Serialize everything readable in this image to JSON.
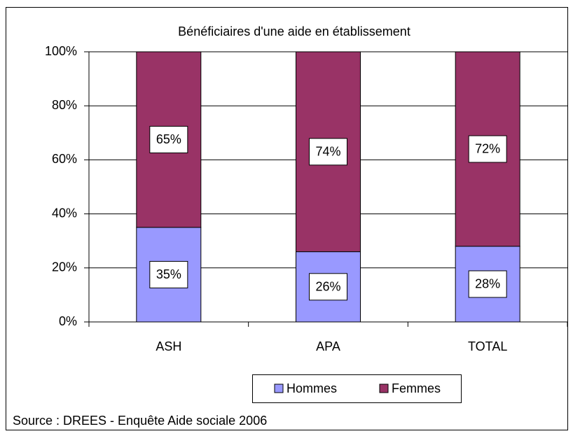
{
  "chart_data": {
    "type": "stacked_bar",
    "title": "Bénéficiaires d'une aide en établissement",
    "categories": [
      "ASH",
      "APA",
      "TOTAL"
    ],
    "series": [
      {
        "name": "Hommes",
        "color": "#9999ff",
        "values": [
          35,
          26,
          28
        ],
        "value_labels": [
          "35%",
          "26%",
          "28%"
        ]
      },
      {
        "name": "Femmes",
        "color": "#993366",
        "values": [
          65,
          74,
          72
        ],
        "value_labels": [
          "65%",
          "74%",
          "72%"
        ]
      }
    ],
    "ylim": [
      0,
      100
    ],
    "yticks": [
      {
        "value": 0,
        "label": "0%"
      },
      {
        "value": 20,
        "label": "20%"
      },
      {
        "value": 40,
        "label": "40%"
      },
      {
        "value": 60,
        "label": "60%"
      },
      {
        "value": 80,
        "label": "80%"
      },
      {
        "value": 100,
        "label": "100%"
      }
    ],
    "grid": true,
    "legend": "bottom",
    "source": "Source : DREES - Enquête Aide sociale 2006"
  }
}
